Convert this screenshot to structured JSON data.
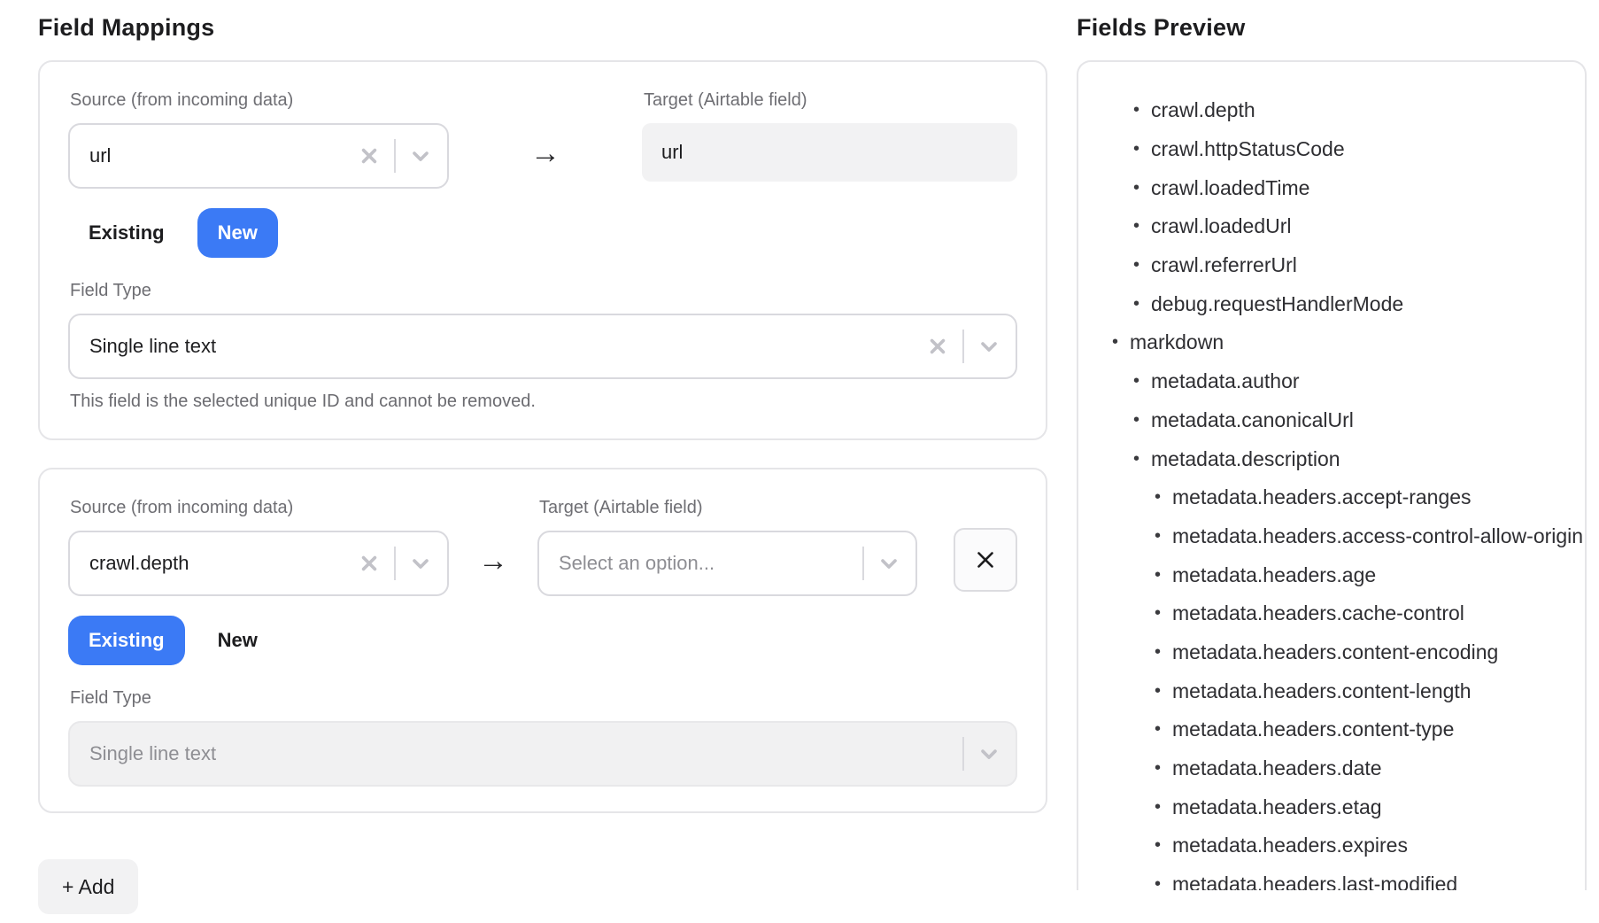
{
  "headers": {
    "left": "Field Mappings",
    "right": "Fields Preview"
  },
  "glyphs": {
    "arrow_right": "→",
    "bullet": "•"
  },
  "accent": {
    "blue": "#3b7af5"
  },
  "add_button": {
    "label": "+ Add"
  },
  "mappings": [
    {
      "source_label": "Source (from incoming data)",
      "source_value": "url",
      "target_label": "Target (Airtable field)",
      "target_value": "url",
      "modes": {
        "existing": "Existing",
        "new": "New"
      },
      "selected_mode": "New",
      "field_type_label": "Field Type",
      "field_type_value": "Single line text",
      "helper_text": "This field is the selected unique ID and cannot be removed."
    },
    {
      "source_label": "Source (from incoming data)",
      "source_value": "crawl.depth",
      "target_label": "Target (Airtable field)",
      "target_placeholder": "Select an option...",
      "modes": {
        "existing": "Existing",
        "new": "New"
      },
      "selected_mode": "Existing",
      "field_type_label": "Field Type",
      "field_type_value": "Single line text"
    }
  ],
  "fields_preview": {
    "items": [
      {
        "label": "crawl.depth",
        "depth": 1
      },
      {
        "label": "crawl.httpStatusCode",
        "depth": 1
      },
      {
        "label": "crawl.loadedTime",
        "depth": 1
      },
      {
        "label": "crawl.loadedUrl",
        "depth": 1
      },
      {
        "label": "crawl.referrerUrl",
        "depth": 1
      },
      {
        "label": "debug.requestHandlerMode",
        "depth": 1
      },
      {
        "label": "markdown",
        "depth": 0
      },
      {
        "label": "metadata.author",
        "depth": 1
      },
      {
        "label": "metadata.canonicalUrl",
        "depth": 1
      },
      {
        "label": "metadata.description",
        "depth": 1
      },
      {
        "label": "metadata.headers.accept-ranges",
        "depth": 2
      },
      {
        "label": "metadata.headers.access-control-allow-origin",
        "depth": 2
      },
      {
        "label": "metadata.headers.age",
        "depth": 2
      },
      {
        "label": "metadata.headers.cache-control",
        "depth": 2
      },
      {
        "label": "metadata.headers.content-encoding",
        "depth": 2
      },
      {
        "label": "metadata.headers.content-length",
        "depth": 2
      },
      {
        "label": "metadata.headers.content-type",
        "depth": 2
      },
      {
        "label": "metadata.headers.date",
        "depth": 2
      },
      {
        "label": "metadata.headers.etag",
        "depth": 2
      },
      {
        "label": "metadata.headers.expires",
        "depth": 2
      },
      {
        "label": "metadata.headers.last-modified",
        "depth": 2
      }
    ]
  }
}
